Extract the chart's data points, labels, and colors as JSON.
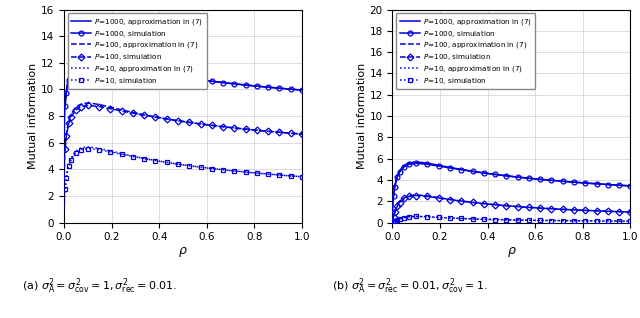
{
  "color": "#0000EE",
  "left_ylim": [
    0,
    16
  ],
  "right_ylim": [
    0,
    20
  ],
  "xlim": [
    0,
    1
  ],
  "xlabel": "$\\rho$",
  "ylabel": "Mutual information",
  "left_yticks": [
    0,
    2,
    4,
    6,
    8,
    10,
    12,
    14,
    16
  ],
  "right_yticks": [
    0,
    2,
    4,
    6,
    8,
    10,
    12,
    14,
    16,
    18,
    20
  ],
  "xticks": [
    0,
    0.2,
    0.4,
    0.6,
    0.8,
    1.0
  ],
  "legend_entries": [
    "$P$=1000, approximation in (7)",
    "$P$=1000, simulation",
    "$P$=100, approximation in (7)",
    "$P$=100, simulation",
    "$P$=10, approximation in (7)",
    "$P$=10, simulation"
  ],
  "caption_a": "(a) $\\sigma_{\\mathrm{A}}^2 = \\sigma_{\\mathrm{cov}}^2 = 1, \\sigma_{\\mathrm{rec}}^2 = 0.01.$",
  "caption_b": "(b) $\\sigma_{\\mathrm{A}}^2 = \\sigma_{\\mathrm{rec}}^2 = 0.01, \\sigma_{\\mathrm{cov}}^2 = 1.$"
}
